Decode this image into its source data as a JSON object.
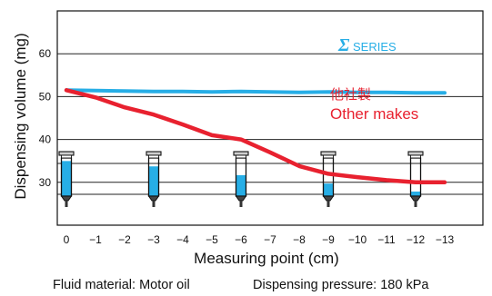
{
  "chart_data": {
    "type": "line",
    "xlabel": "Measuring point (cm)",
    "ylabel": "Dispensing volume (mg)",
    "x": [
      0,
      -1,
      -2,
      -3,
      -4,
      -5,
      -6,
      -7,
      -8,
      -9,
      -10,
      -11,
      -12,
      -13
    ],
    "x_tick_labels": [
      "0",
      "−1",
      "−2",
      "−3",
      "−4",
      "−5",
      "−6",
      "−7",
      "−8",
      "−9",
      "−10",
      "−11",
      "−12",
      "−13"
    ],
    "y_ticks": [
      30,
      40,
      50,
      60
    ],
    "ylim": [
      20,
      70
    ],
    "grid": true,
    "series": [
      {
        "name": "ΣSERIES",
        "label_parts": {
          "symbol": "Σ",
          "text": "SERIES"
        },
        "color": "#27aee6",
        "values": [
          51.5,
          51.4,
          51.3,
          51.2,
          51.2,
          51.1,
          51.2,
          51.1,
          51.0,
          51.1,
          51.0,
          51.0,
          50.9,
          50.9
        ]
      },
      {
        "name": "Other makes",
        "name_ja": "他社製",
        "color": "#e8212f",
        "values": [
          51.5,
          49.8,
          47.5,
          45.8,
          43.5,
          41.0,
          40.0,
          37.0,
          33.8,
          32.0,
          31.2,
          30.5,
          30.0,
          30.0
        ]
      }
    ],
    "syringes": [
      {
        "x": 0,
        "fill_level": 0.92
      },
      {
        "x": -3,
        "fill_level": 0.78
      },
      {
        "x": -6,
        "fill_level": 0.55
      },
      {
        "x": -9,
        "fill_level": 0.33
      },
      {
        "x": -12,
        "fill_level": 0.12
      }
    ],
    "syringe_fluid_color": "#27aee6"
  },
  "caption": {
    "fluid": "Fluid material: Motor oil",
    "pressure": "Dispensing pressure: 180 kPa"
  }
}
